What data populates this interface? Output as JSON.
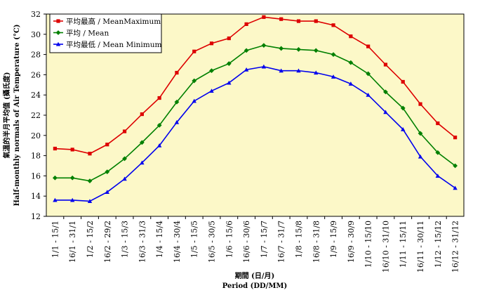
{
  "chart_data": {
    "type": "line",
    "xlabel_zh": "期間 (日/月)",
    "xlabel_en": "Period (DD/MM)",
    "ylabel_zh": "氣溫的半月平均值 (攝氏度)",
    "ylabel_en": "Half-monthly normals of Air Temperature (°C)",
    "ylim": [
      12,
      32
    ],
    "yticks": [
      "12",
      "14",
      "16",
      "18",
      "20",
      "22",
      "24",
      "26",
      "28",
      "30",
      "32"
    ],
    "grid": false,
    "legend_position": "top-left",
    "plot_background": "#fcf8c8",
    "categories": [
      "1/1 - 15/1",
      "16/1 - 31/1",
      "1/2 - 15/2",
      "16/2 - 29/2",
      "1/3 - 15/3",
      "16/3 - 31/3",
      "1/4 - 15/4",
      "16/4 - 30/4",
      "1/5 - 15/5",
      "16/5 - 30/5",
      "1/6 - 15/6",
      "16/6 - 30/6",
      "1/7 - 15/7",
      "16/7 - 31/7",
      "1/8 - 15/8",
      "16/8 - 31/8",
      "1/9 - 15/9",
      "16/9 - 30/9",
      "1/10 - 15/10",
      "16/10 - 31/10",
      "1/11 - 15/11",
      "16/11 - 30/11",
      "1/12 - 15/12",
      "16/12 - 31/12"
    ],
    "series": [
      {
        "name": "平均最高 / MeanMaximum",
        "color": "#dd0000",
        "marker": "square",
        "values": [
          18.7,
          18.6,
          18.2,
          19.1,
          20.4,
          22.1,
          23.7,
          26.2,
          28.3,
          29.1,
          29.6,
          31.0,
          31.7,
          31.5,
          31.3,
          31.3,
          30.9,
          29.8,
          28.8,
          27.0,
          25.3,
          23.1,
          21.2,
          19.8
        ]
      },
      {
        "name": "平均 / Mean",
        "color": "#008000",
        "marker": "diamond",
        "values": [
          15.8,
          15.8,
          15.5,
          16.4,
          17.7,
          19.3,
          21.0,
          23.3,
          25.4,
          26.4,
          27.1,
          28.4,
          28.9,
          28.6,
          28.5,
          28.4,
          28.0,
          27.2,
          26.1,
          24.3,
          22.7,
          20.2,
          18.3,
          17.0
        ]
      },
      {
        "name": "平均最低 / Mean Minimum",
        "color": "#0000ee",
        "marker": "triangle",
        "values": [
          13.6,
          13.6,
          13.5,
          14.4,
          15.7,
          17.3,
          19.0,
          21.3,
          23.4,
          24.4,
          25.2,
          26.5,
          26.8,
          26.4,
          26.4,
          26.2,
          25.8,
          25.1,
          24.0,
          22.3,
          20.6,
          17.9,
          16.0,
          14.8
        ]
      }
    ]
  }
}
